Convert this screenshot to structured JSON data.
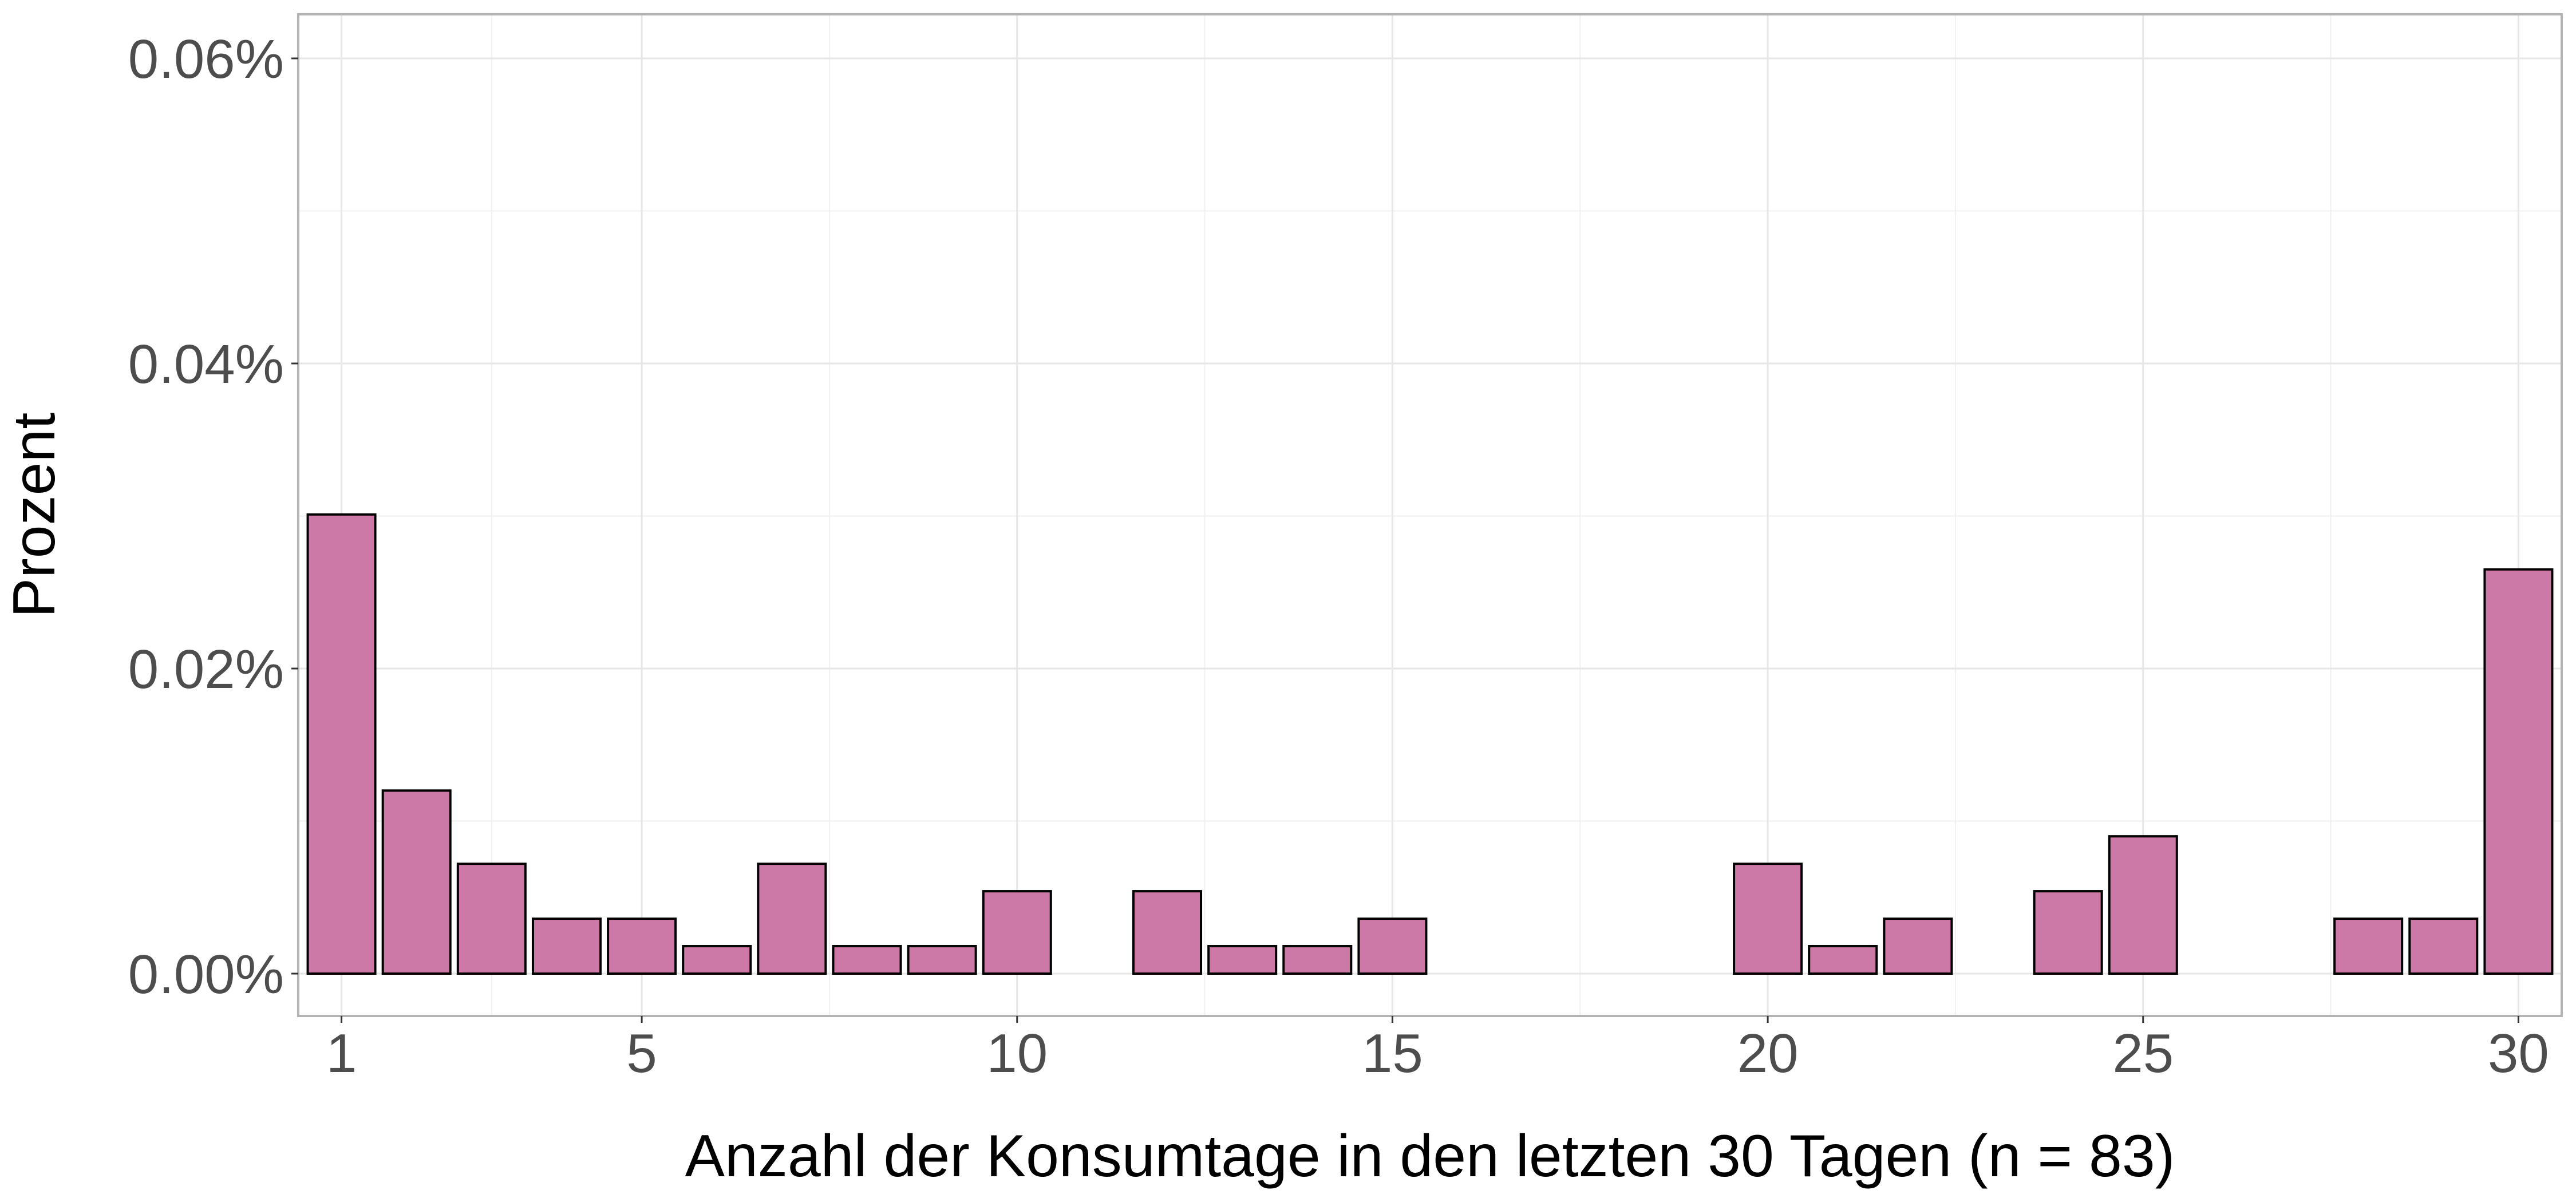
{
  "chart_data": {
    "type": "bar",
    "title": "",
    "xlabel": "Anzahl der Konsumtage in den letzten 30 Tagen (n = 83)",
    "ylabel": "Prozent",
    "xlim": [
      0.5,
      30.5
    ],
    "ylim": [
      0,
      0.06
    ],
    "x_ticks": [
      1,
      5,
      10,
      15,
      20,
      25,
      30
    ],
    "y_ticks": [
      0.0,
      0.02,
      0.04,
      0.06
    ],
    "y_tick_labels": [
      "0.00%",
      "0.02%",
      "0.04%",
      "0.06%"
    ],
    "grid": true,
    "bar_fill": "#cc79a7",
    "bar_stroke": "#000000",
    "x": [
      1,
      2,
      3,
      4,
      5,
      6,
      7,
      8,
      9,
      10,
      12,
      13,
      14,
      15,
      20,
      21,
      22,
      24,
      25,
      28,
      29,
      30
    ],
    "values": [
      0.0301,
      0.012,
      0.0072,
      0.0036,
      0.0036,
      0.0018,
      0.0072,
      0.0018,
      0.0018,
      0.0054,
      0.0054,
      0.0018,
      0.0018,
      0.0036,
      0.0072,
      0.0018,
      0.0036,
      0.0054,
      0.009,
      0.0036,
      0.0036,
      0.0265
    ]
  }
}
